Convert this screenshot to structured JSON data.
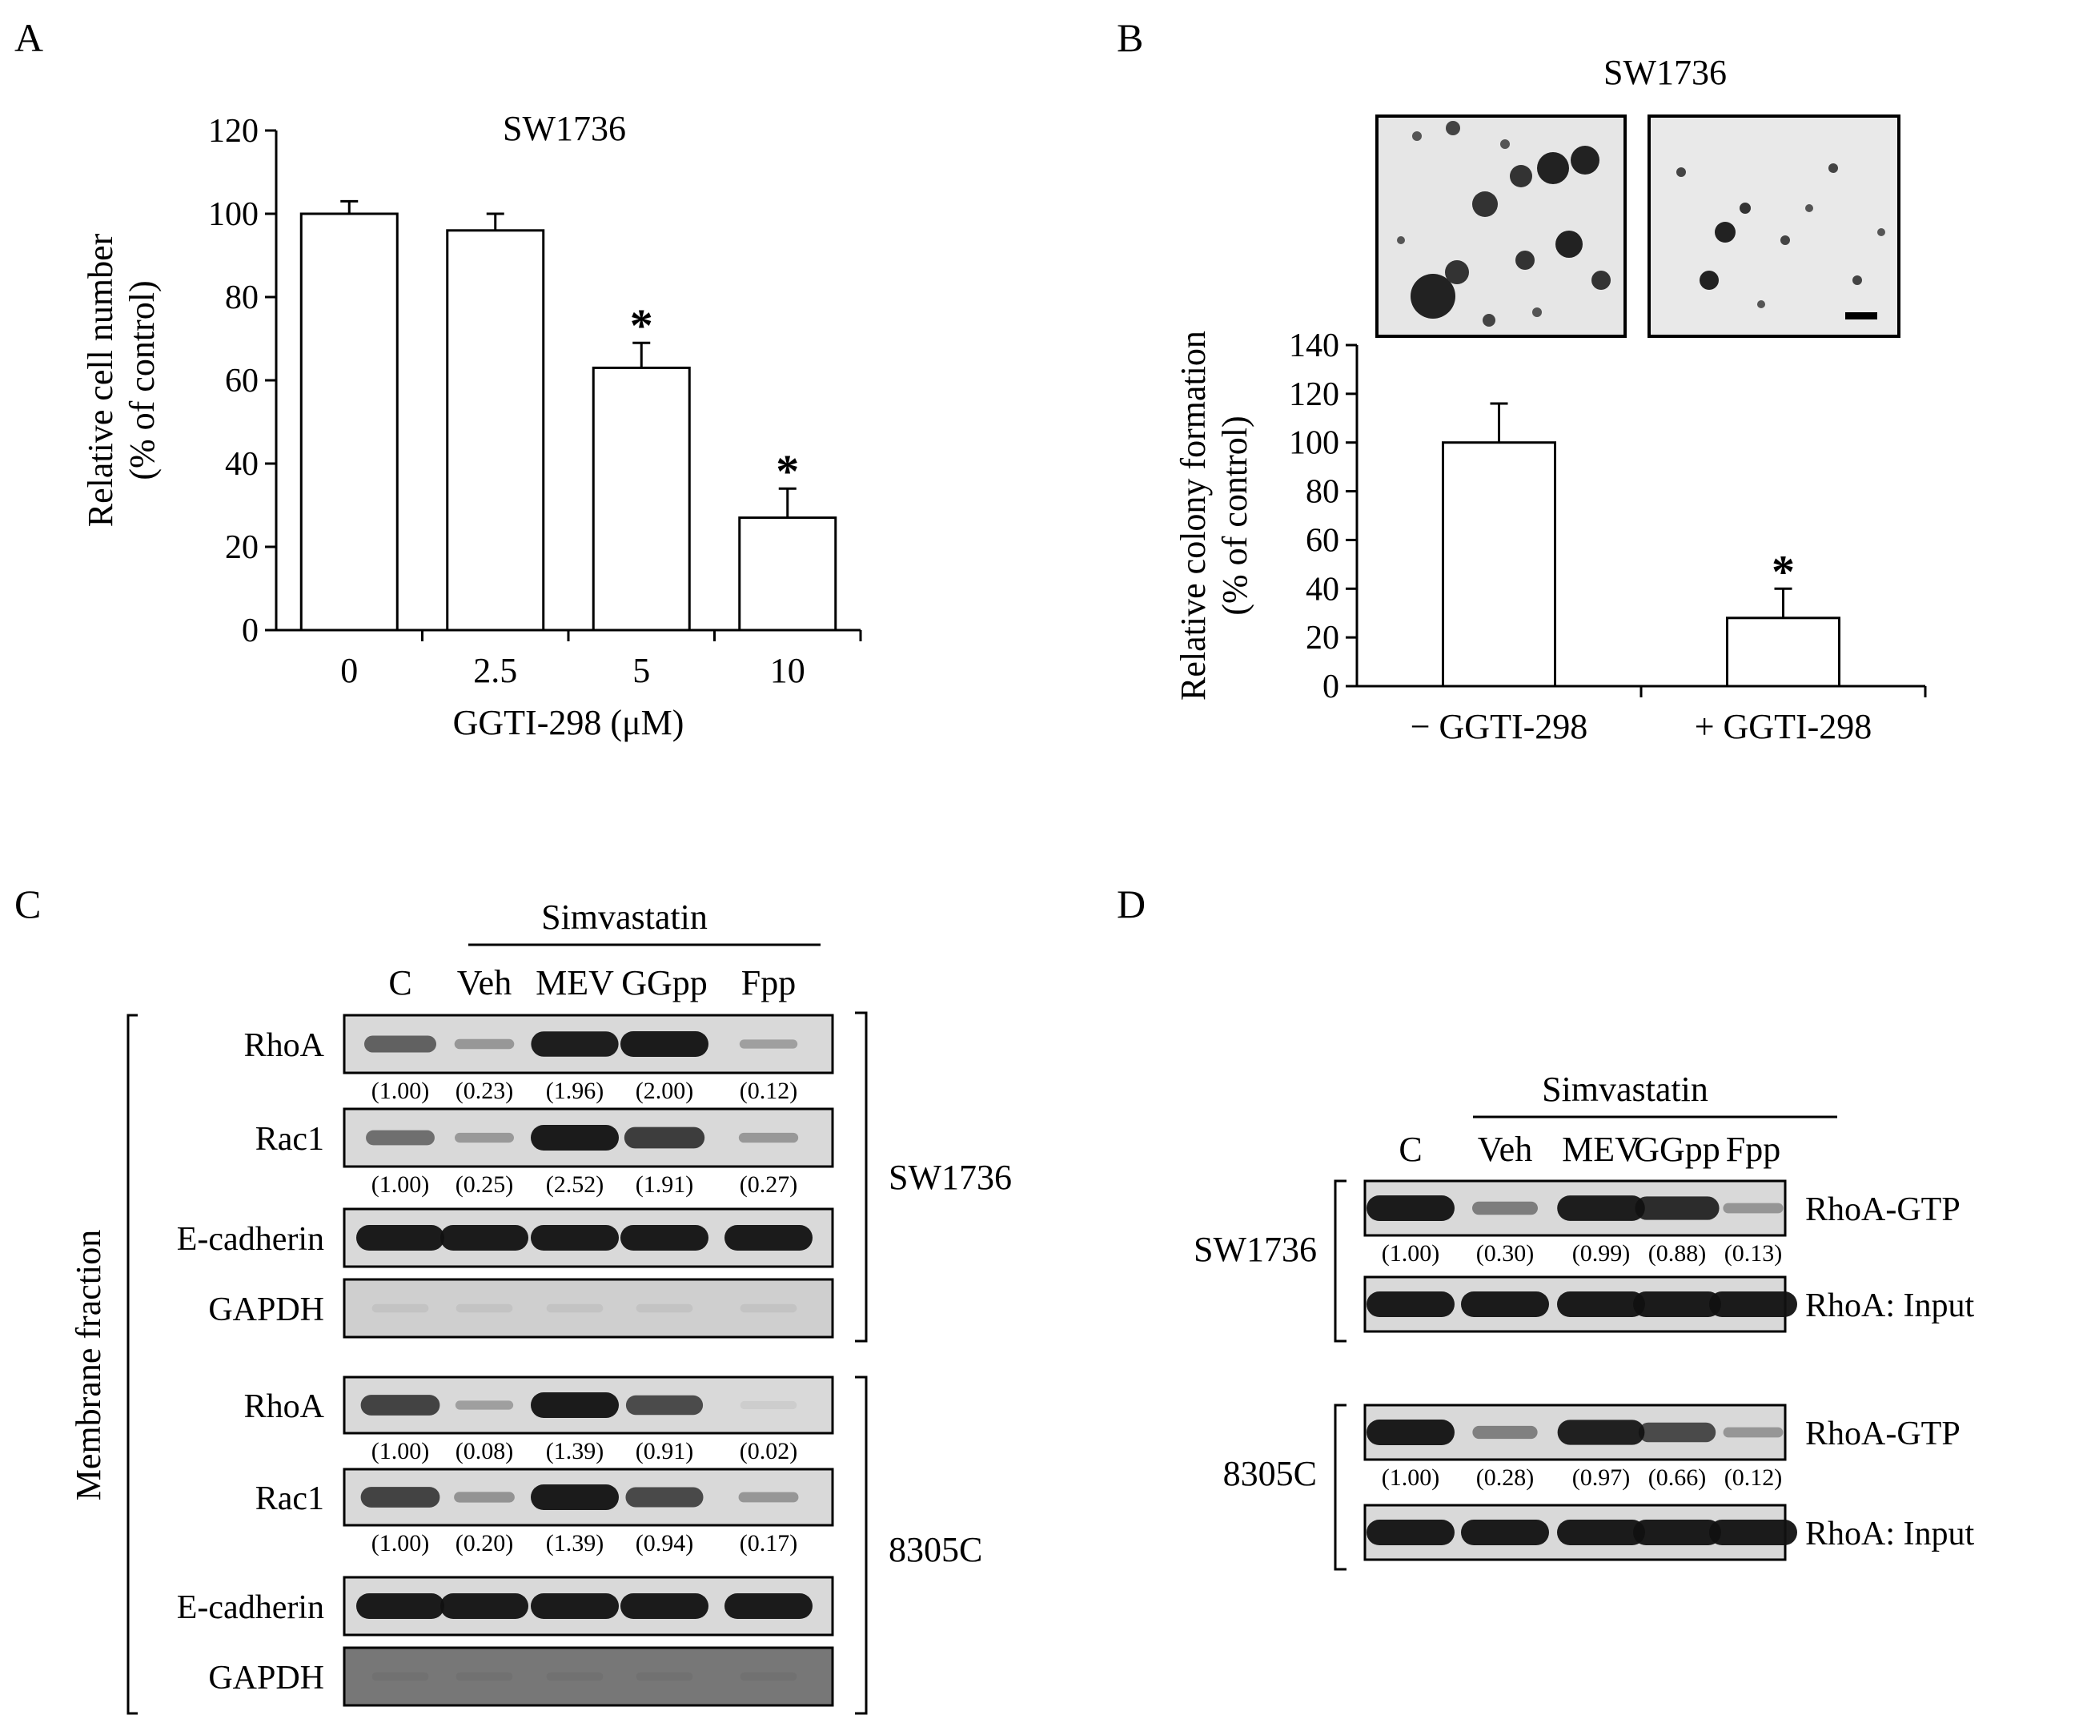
{
  "panels": {
    "A": {
      "label": "A"
    },
    "B": {
      "label": "B"
    },
    "C": {
      "label": "C"
    },
    "D": {
      "label": "D"
    }
  },
  "chart_data": [
    {
      "panel": "A",
      "type": "bar",
      "title": "SW1736",
      "xlabel": "GGTI-298 (μM)",
      "ylabel": [
        "Relative cell number",
        "(% of control)"
      ],
      "categories": [
        "0",
        "2.5",
        "5",
        "10"
      ],
      "values": [
        100,
        96,
        63,
        27
      ],
      "errors": [
        3,
        4,
        6,
        7
      ],
      "significance": [
        "",
        "",
        "*",
        "*"
      ],
      "ylim": [
        0,
        120
      ],
      "yticks": [
        "0",
        "20",
        "40",
        "60",
        "80",
        "100",
        "120"
      ]
    },
    {
      "panel": "B",
      "type": "bar",
      "title": "SW1736",
      "xlabel": "",
      "ylabel": [
        "Relative colony formation",
        "(% of control)"
      ],
      "categories": [
        "− GGTI-298",
        "+ GGTI-298"
      ],
      "values": [
        100,
        28
      ],
      "errors": [
        16,
        12
      ],
      "significance": [
        "",
        "*"
      ],
      "ylim": [
        0,
        140
      ],
      "yticks": [
        "0",
        "20",
        "40",
        "60",
        "80",
        "100",
        "120",
        "140"
      ]
    }
  ],
  "panelC": {
    "treatment": "Simvastatin",
    "lanes": [
      "C",
      "Veh",
      "MEV",
      "GGpp",
      "Fpp"
    ],
    "side_label": "Membrane fraction",
    "groups": [
      {
        "cell_line": "SW1736",
        "blots": [
          {
            "name": "RhoA",
            "quant": [
              "(1.00)",
              "(0.23)",
              "(1.96)",
              "(2.00)",
              "(0.12)"
            ],
            "levels": [
              1.0,
              0.23,
              1.96,
              2.0,
              0.12
            ]
          },
          {
            "name": "Rac1",
            "quant": [
              "(1.00)",
              "(0.25)",
              "(2.52)",
              "(1.91)",
              "(0.27)"
            ],
            "levels": [
              1.0,
              0.25,
              2.52,
              1.91,
              0.27
            ]
          },
          {
            "name": "E-cadherin",
            "quant": [],
            "levels": [
              1,
              1,
              1,
              1,
              1
            ]
          },
          {
            "name": "GAPDH",
            "quant": [],
            "levels": [
              0.02,
              0.02,
              0.02,
              0.02,
              0.02
            ]
          }
        ]
      },
      {
        "cell_line": "8305C",
        "blots": [
          {
            "name": "RhoA",
            "quant": [
              "(1.00)",
              "(0.08)",
              "(1.39)",
              "(0.91)",
              "(0.02)"
            ],
            "levels": [
              1.0,
              0.08,
              1.39,
              0.91,
              0.02
            ]
          },
          {
            "name": "Rac1",
            "quant": [
              "(1.00)",
              "(0.20)",
              "(1.39)",
              "(0.94)",
              "(0.17)"
            ],
            "levels": [
              1.0,
              0.2,
              1.39,
              0.94,
              0.17
            ]
          },
          {
            "name": "E-cadherin",
            "quant": [],
            "levels": [
              1,
              1,
              1,
              1,
              1
            ]
          },
          {
            "name": "GAPDH",
            "quant": [],
            "levels": [
              0.02,
              0.02,
              0.02,
              0.02,
              0.02
            ]
          }
        ]
      }
    ]
  },
  "panelD": {
    "treatment": "Simvastatin",
    "lanes": [
      "C",
      "Veh",
      "MEV",
      "GGpp",
      "Fpp"
    ],
    "groups": [
      {
        "cell_line": "SW1736",
        "blots": [
          {
            "name": "RhoA-GTP",
            "quant": [
              "(1.00)",
              "(0.30)",
              "(0.99)",
              "(0.88)",
              "(0.13)"
            ],
            "levels": [
              1.0,
              0.3,
              0.99,
              0.88,
              0.13
            ]
          },
          {
            "name": "RhoA: Input",
            "quant": [],
            "levels": [
              1,
              1,
              1,
              1,
              1
            ]
          }
        ]
      },
      {
        "cell_line": "8305C",
        "blots": [
          {
            "name": "RhoA-GTP",
            "quant": [
              "(1.00)",
              "(0.28)",
              "(0.97)",
              "(0.66)",
              "(0.12)"
            ],
            "levels": [
              1.0,
              0.28,
              0.97,
              0.66,
              0.12
            ]
          },
          {
            "name": "RhoA: Input",
            "quant": [],
            "levels": [
              1,
              1,
              1,
              1,
              1
            ]
          }
        ]
      }
    ]
  }
}
